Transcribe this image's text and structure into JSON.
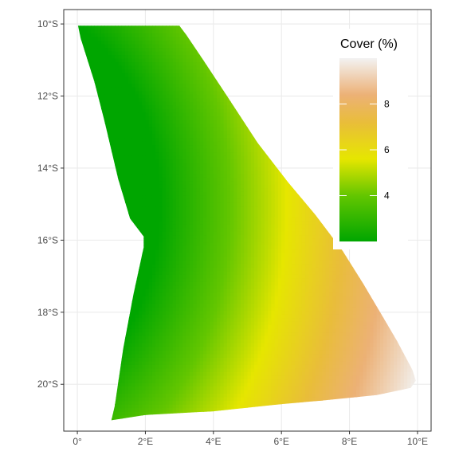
{
  "chart_data": {
    "type": "heatmap",
    "title": "",
    "xlabel": "",
    "ylabel": "",
    "x_ticks": [
      {
        "value": 0,
        "label": "0°"
      },
      {
        "value": 2,
        "label": "2°E"
      },
      {
        "value": 4,
        "label": "4°E"
      },
      {
        "value": 6,
        "label": "6°E"
      },
      {
        "value": 8,
        "label": "8°E"
      },
      {
        "value": 10,
        "label": "10°E"
      }
    ],
    "y_ticks": [
      {
        "value": -10,
        "label": "10°S"
      },
      {
        "value": -12,
        "label": "12°S"
      },
      {
        "value": -14,
        "label": "14°S"
      },
      {
        "value": -16,
        "label": "16°S"
      },
      {
        "value": -18,
        "label": "18°S"
      },
      {
        "value": -20,
        "label": "20°S"
      }
    ],
    "xlim": [
      -0.4,
      10.4
    ],
    "ylim": [
      -21.3,
      -9.6
    ],
    "grid": true,
    "region_outline": [
      [
        0.02,
        -10.05
      ],
      [
        3.0,
        -10.05
      ],
      [
        3.2,
        -10.3
      ],
      [
        3.7,
        -11.0
      ],
      [
        4.4,
        -12.0
      ],
      [
        5.3,
        -13.3
      ],
      [
        6.2,
        -14.4
      ],
      [
        7.0,
        -15.3
      ],
      [
        7.8,
        -16.3
      ],
      [
        8.4,
        -17.2
      ],
      [
        8.9,
        -18.0
      ],
      [
        9.4,
        -18.8
      ],
      [
        9.85,
        -19.6
      ],
      [
        9.95,
        -19.9
      ],
      [
        9.8,
        -20.1
      ],
      [
        8.8,
        -20.3
      ],
      [
        7.2,
        -20.45
      ],
      [
        6.0,
        -20.55
      ],
      [
        4.0,
        -20.75
      ],
      [
        2.0,
        -20.85
      ],
      [
        1.0,
        -21.0
      ],
      [
        1.1,
        -20.6
      ],
      [
        1.35,
        -19.0
      ],
      [
        1.65,
        -17.5
      ],
      [
        1.95,
        -16.2
      ],
      [
        1.95,
        -15.9
      ],
      [
        1.55,
        -15.4
      ],
      [
        1.2,
        -14.3
      ],
      [
        0.8,
        -12.7
      ],
      [
        0.5,
        -11.6
      ],
      [
        0.1,
        -10.4
      ]
    ],
    "value_field": {
      "description_ref": "cover",
      "min_point": [
        0.0,
        -10.0
      ],
      "min_value": 2,
      "max_point": [
        10.0,
        -20.0
      ],
      "max_value": 10,
      "curvature_center": [
        -2.5,
        -15.0
      ]
    },
    "legend": {
      "title": "Cover (%)",
      "placement": "top-right",
      "ticks": [
        {
          "value": 4,
          "label": "4"
        },
        {
          "value": 6,
          "label": "6"
        },
        {
          "value": 8,
          "label": "8"
        }
      ],
      "range": [
        2,
        10
      ]
    },
    "colorscale": [
      {
        "value": 2.0,
        "color": "#00a600"
      },
      {
        "value": 4.0,
        "color": "#63c600"
      },
      {
        "value": 5.6,
        "color": "#e6e600"
      },
      {
        "value": 7.2,
        "color": "#e9bd3a"
      },
      {
        "value": 8.4,
        "color": "#ecb176"
      },
      {
        "value": 10.0,
        "color": "#f2f2f2"
      }
    ]
  },
  "colors": {
    "panel_border": "#333333",
    "grid": "#ebebeb",
    "axis_text": "#4d4d4d",
    "tick": "#333333",
    "background": "#ffffff"
  }
}
